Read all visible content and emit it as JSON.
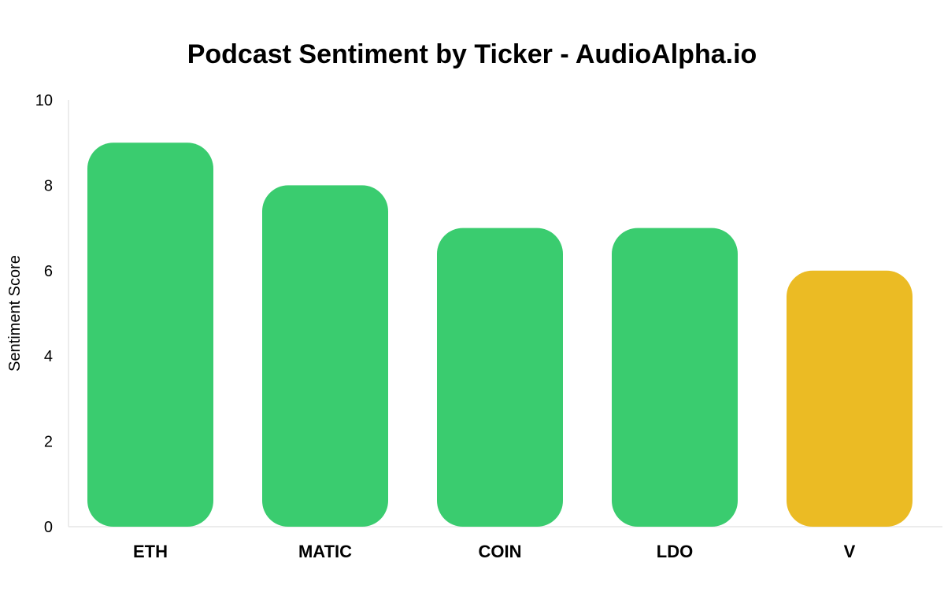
{
  "chart_data": {
    "type": "bar",
    "title": "Podcast Sentiment by Ticker - AudioAlpha.io",
    "xlabel": "",
    "ylabel": "Sentiment Score",
    "ylim": [
      0,
      10
    ],
    "yticks": [
      0,
      2,
      4,
      6,
      8,
      10
    ],
    "categories": [
      "ETH",
      "MATIC",
      "COIN",
      "LDO",
      "V"
    ],
    "values": [
      9,
      8,
      7,
      7,
      6
    ],
    "bar_colors": [
      "#3acc6f",
      "#3acc6f",
      "#3acc6f",
      "#3acc6f",
      "#ebbb24"
    ],
    "grid": false,
    "legend": "none"
  }
}
